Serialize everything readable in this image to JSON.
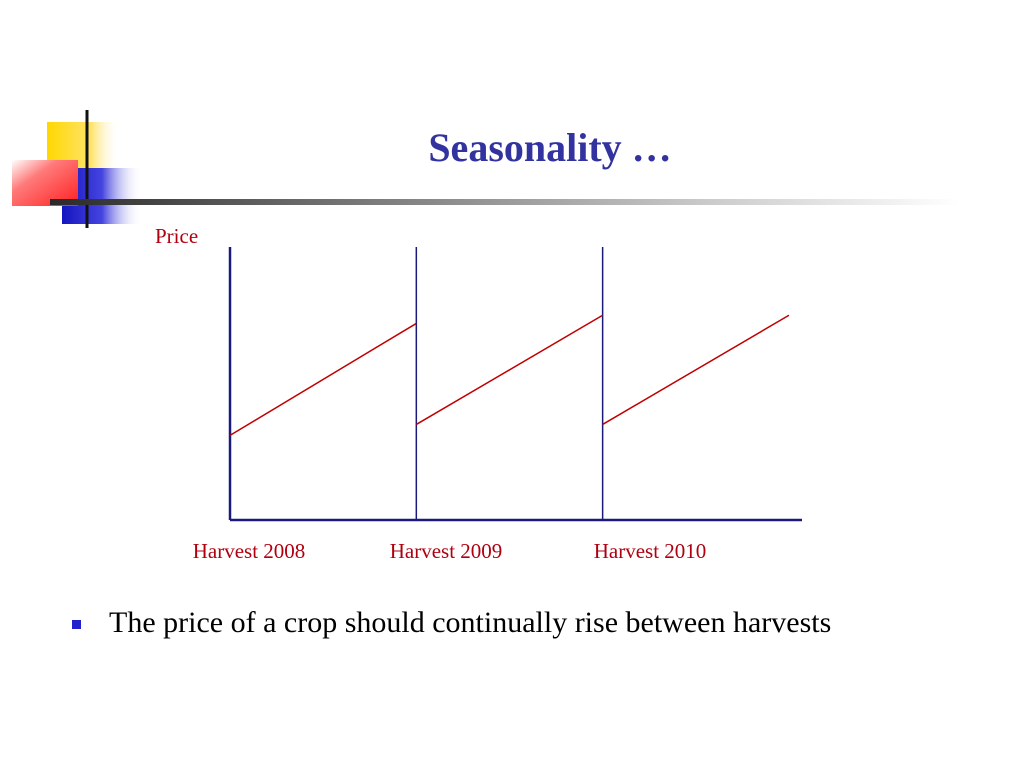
{
  "slide": {
    "title": "Seasonality …",
    "bullet": "The price of a crop should continually rise between harvests"
  },
  "colors": {
    "title": "#3333a0",
    "axis": "#1a1a7a",
    "trend": "#c00000",
    "labels": "#b00010",
    "bullet": "#2222cc"
  },
  "icons": [
    "logo-squares-icon",
    "bullet-square-icon"
  ],
  "chart_data": {
    "type": "line",
    "ylabel": "Price",
    "xlabel": "",
    "categories": [
      "Harvest 2008",
      "Harvest 2009",
      "Harvest 2010"
    ],
    "xlim": [
      0,
      3.07
    ],
    "ylim": [
      0,
      10
    ],
    "grid": false,
    "segments": [
      {
        "x": [
          0,
          1
        ],
        "y": [
          3.1,
          7.2
        ]
      },
      {
        "x": [
          1,
          2
        ],
        "y": [
          3.5,
          7.5
        ]
      },
      {
        "x": [
          2,
          3
        ],
        "y": [
          3.5,
          7.5
        ]
      }
    ]
  }
}
